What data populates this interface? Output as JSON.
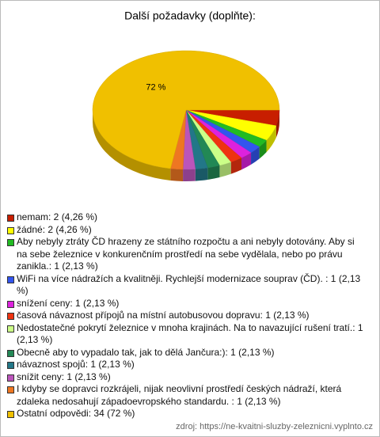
{
  "chart_data": {
    "type": "pie3d",
    "title": "Další požadavky (doplňte):",
    "categories": [
      "nemam",
      "žádné",
      "Aby nebyly ztráty ČD hrazeny ze státního rozpočtu a ani nebyly dotovány. Aby si na sebe železnice v konkurenčním prostředí na sebe vydělala, nebo po právu zanikla.",
      "WiFi na více nádražích a kvalitněji. Rychlejší modernizace souprav (ČD).",
      "snížení ceny",
      "časová návaznost přípojů na místní autobusovou dopravu",
      "Nedostatečné pokrytí železnice v mnoha krajinách. Na to navazující rušení tratí.",
      "Obecně aby to vypadalo tak, jak to dělá Jančura:)",
      "návaznost spojů",
      "snížit ceny",
      "I kdyby se dopravci rozkrájeli, nijak neovlivní prostředí českých nádraží, která zdaleka nedosahují západoevropského standardu.",
      "Ostatní odpovědi"
    ],
    "values": [
      2,
      2,
      1,
      1,
      1,
      1,
      1,
      1,
      1,
      1,
      1,
      34
    ],
    "legend_labels": [
      "nemam: 2 (4,26 %)",
      "žádné: 2 (4,26 %)",
      "Aby nebyly ztráty ČD hrazeny ze státního rozpočtu a ani nebyly dotovány. Aby si na sebe železnice v konkurenčním prostředí na sebe vydělala, nebo po právu zanikla.: 1 (2,13 %)",
      "WiFi na více nádražích a kvalitněji. Rychlejší modernizace souprav (ČD). : 1 (2,13 %)",
      "snížení ceny: 1 (2,13 %)",
      "časová návaznost přípojů na místní autobusovou dopravu: 1 (2,13 %)",
      "Nedostatečné pokrytí železnice v mnoha krajinách. Na to navazující rušení tratí.: 1 (2,13 %)",
      "Obecně aby to vypadalo tak, jak to dělá Jančura:): 1 (2,13 %)",
      "návaznost spojů: 1 (2,13 %)",
      "snížit ceny: 1 (2,13 %)",
      "I kdyby se dopravci rozkrájeli, nijak neovlivní prostředí českých nádraží, která zdaleka nedosahují západoevropského standardu. : 1 (2,13 %)",
      "Ostatní odpovědi: 34 (72 %)"
    ],
    "slice_labels": [
      null,
      null,
      null,
      null,
      null,
      null,
      null,
      null,
      null,
      null,
      null,
      "72 %"
    ],
    "colors": [
      "#c81e00",
      "#ffff00",
      "#22bb22",
      "#3355ee",
      "#dd22dd",
      "#ee3311",
      "#ccff88",
      "#228855",
      "#227788",
      "#bb55bb",
      "#ee7722",
      "#f0c000"
    ],
    "source": "zdroj: https://ne-kvaitni-sluzby-zeleznicni.vyplnto.cz"
  }
}
